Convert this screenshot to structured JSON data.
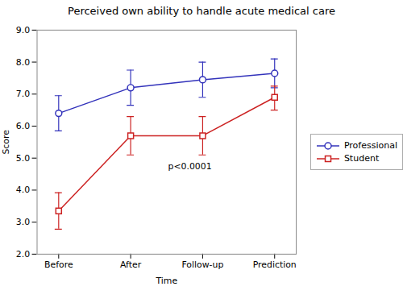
{
  "chart_data": {
    "type": "line",
    "title": "Perceived own ability to handle acute medical care",
    "x_label": "Time",
    "y_label": "Score",
    "categories": [
      "Before",
      "After",
      "Follow-up",
      "Prediction"
    ],
    "series": [
      {
        "name": "Professional",
        "color": "#3333bb",
        "marker": "circle",
        "line_style": "solid",
        "values": [
          6.4,
          7.2,
          7.45,
          7.65
        ],
        "ci_lower": [
          5.85,
          6.65,
          6.9,
          7.2
        ],
        "ci_upper": [
          6.95,
          7.75,
          8.0,
          8.1
        ]
      },
      {
        "name": "Student",
        "color": "#cc2222",
        "marker": "square",
        "line_style": "solid",
        "values": [
          3.35,
          5.7,
          5.7,
          6.9
        ],
        "ci_lower": [
          2.78,
          5.1,
          5.1,
          6.5
        ],
        "ci_upper": [
          3.92,
          6.3,
          6.3,
          7.25
        ]
      }
    ],
    "ylim": [
      2,
      9
    ],
    "yticks": [
      2,
      3,
      4,
      5,
      6,
      7,
      8,
      9
    ],
    "annotations": [
      {
        "text": "p<0.0001",
        "x": 1.52,
        "y": 4.75
      }
    ],
    "legend": "right",
    "grid": false
  }
}
